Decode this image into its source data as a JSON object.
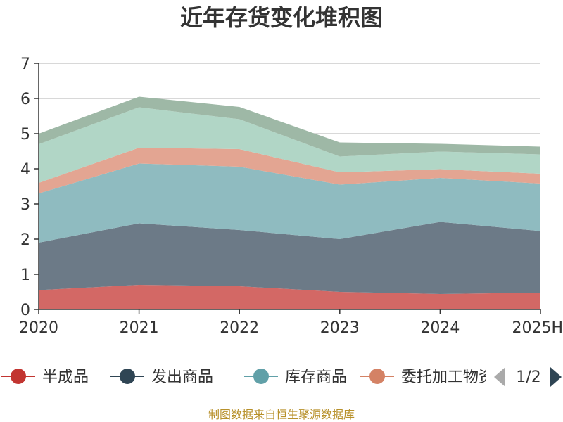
{
  "chart_data": {
    "type": "area",
    "stacked": true,
    "title": "近年存货变化堆积图",
    "source_note": "制图数据来自恒生聚源数据库",
    "x": [
      "2020",
      "2021",
      "2022",
      "2023",
      "2024",
      "2025H"
    ],
    "ylim": [
      0,
      7
    ],
    "yticks": [
      0,
      1,
      2,
      3,
      4,
      5,
      6,
      7
    ],
    "grid": true,
    "series": [
      {
        "name": "半成品",
        "color": "#d36865",
        "legend_color": "#c23531",
        "values": [
          0.55,
          0.7,
          0.66,
          0.5,
          0.44,
          0.48
        ]
      },
      {
        "name": "发出商品",
        "color": "#6c7a87",
        "legend_color": "#2f4554",
        "values": [
          1.35,
          1.75,
          1.6,
          1.5,
          2.05,
          1.75
        ]
      },
      {
        "name": "库存商品",
        "color": "#8fbbc0",
        "legend_color": "#61a0a8",
        "values": [
          1.4,
          1.7,
          1.8,
          1.55,
          1.25,
          1.35
        ]
      },
      {
        "name": "委托加工物资",
        "color": "#e3a592",
        "legend_color": "#d48265",
        "values": [
          0.3,
          0.45,
          0.5,
          0.35,
          0.25,
          0.28
        ]
      },
      {
        "values": [
          1.1,
          1.15,
          0.85,
          0.45,
          0.5,
          0.55
        ]
      },
      {
        "values": [
          0.3,
          0.3,
          0.35,
          0.4,
          0.22,
          0.22
        ]
      }
    ],
    "extra_colors": [
      "#b1d6c6",
      "#9eb8a6"
    ],
    "legend": {
      "position": "bottom",
      "page": "1/2",
      "visible_count": 4
    }
  }
}
